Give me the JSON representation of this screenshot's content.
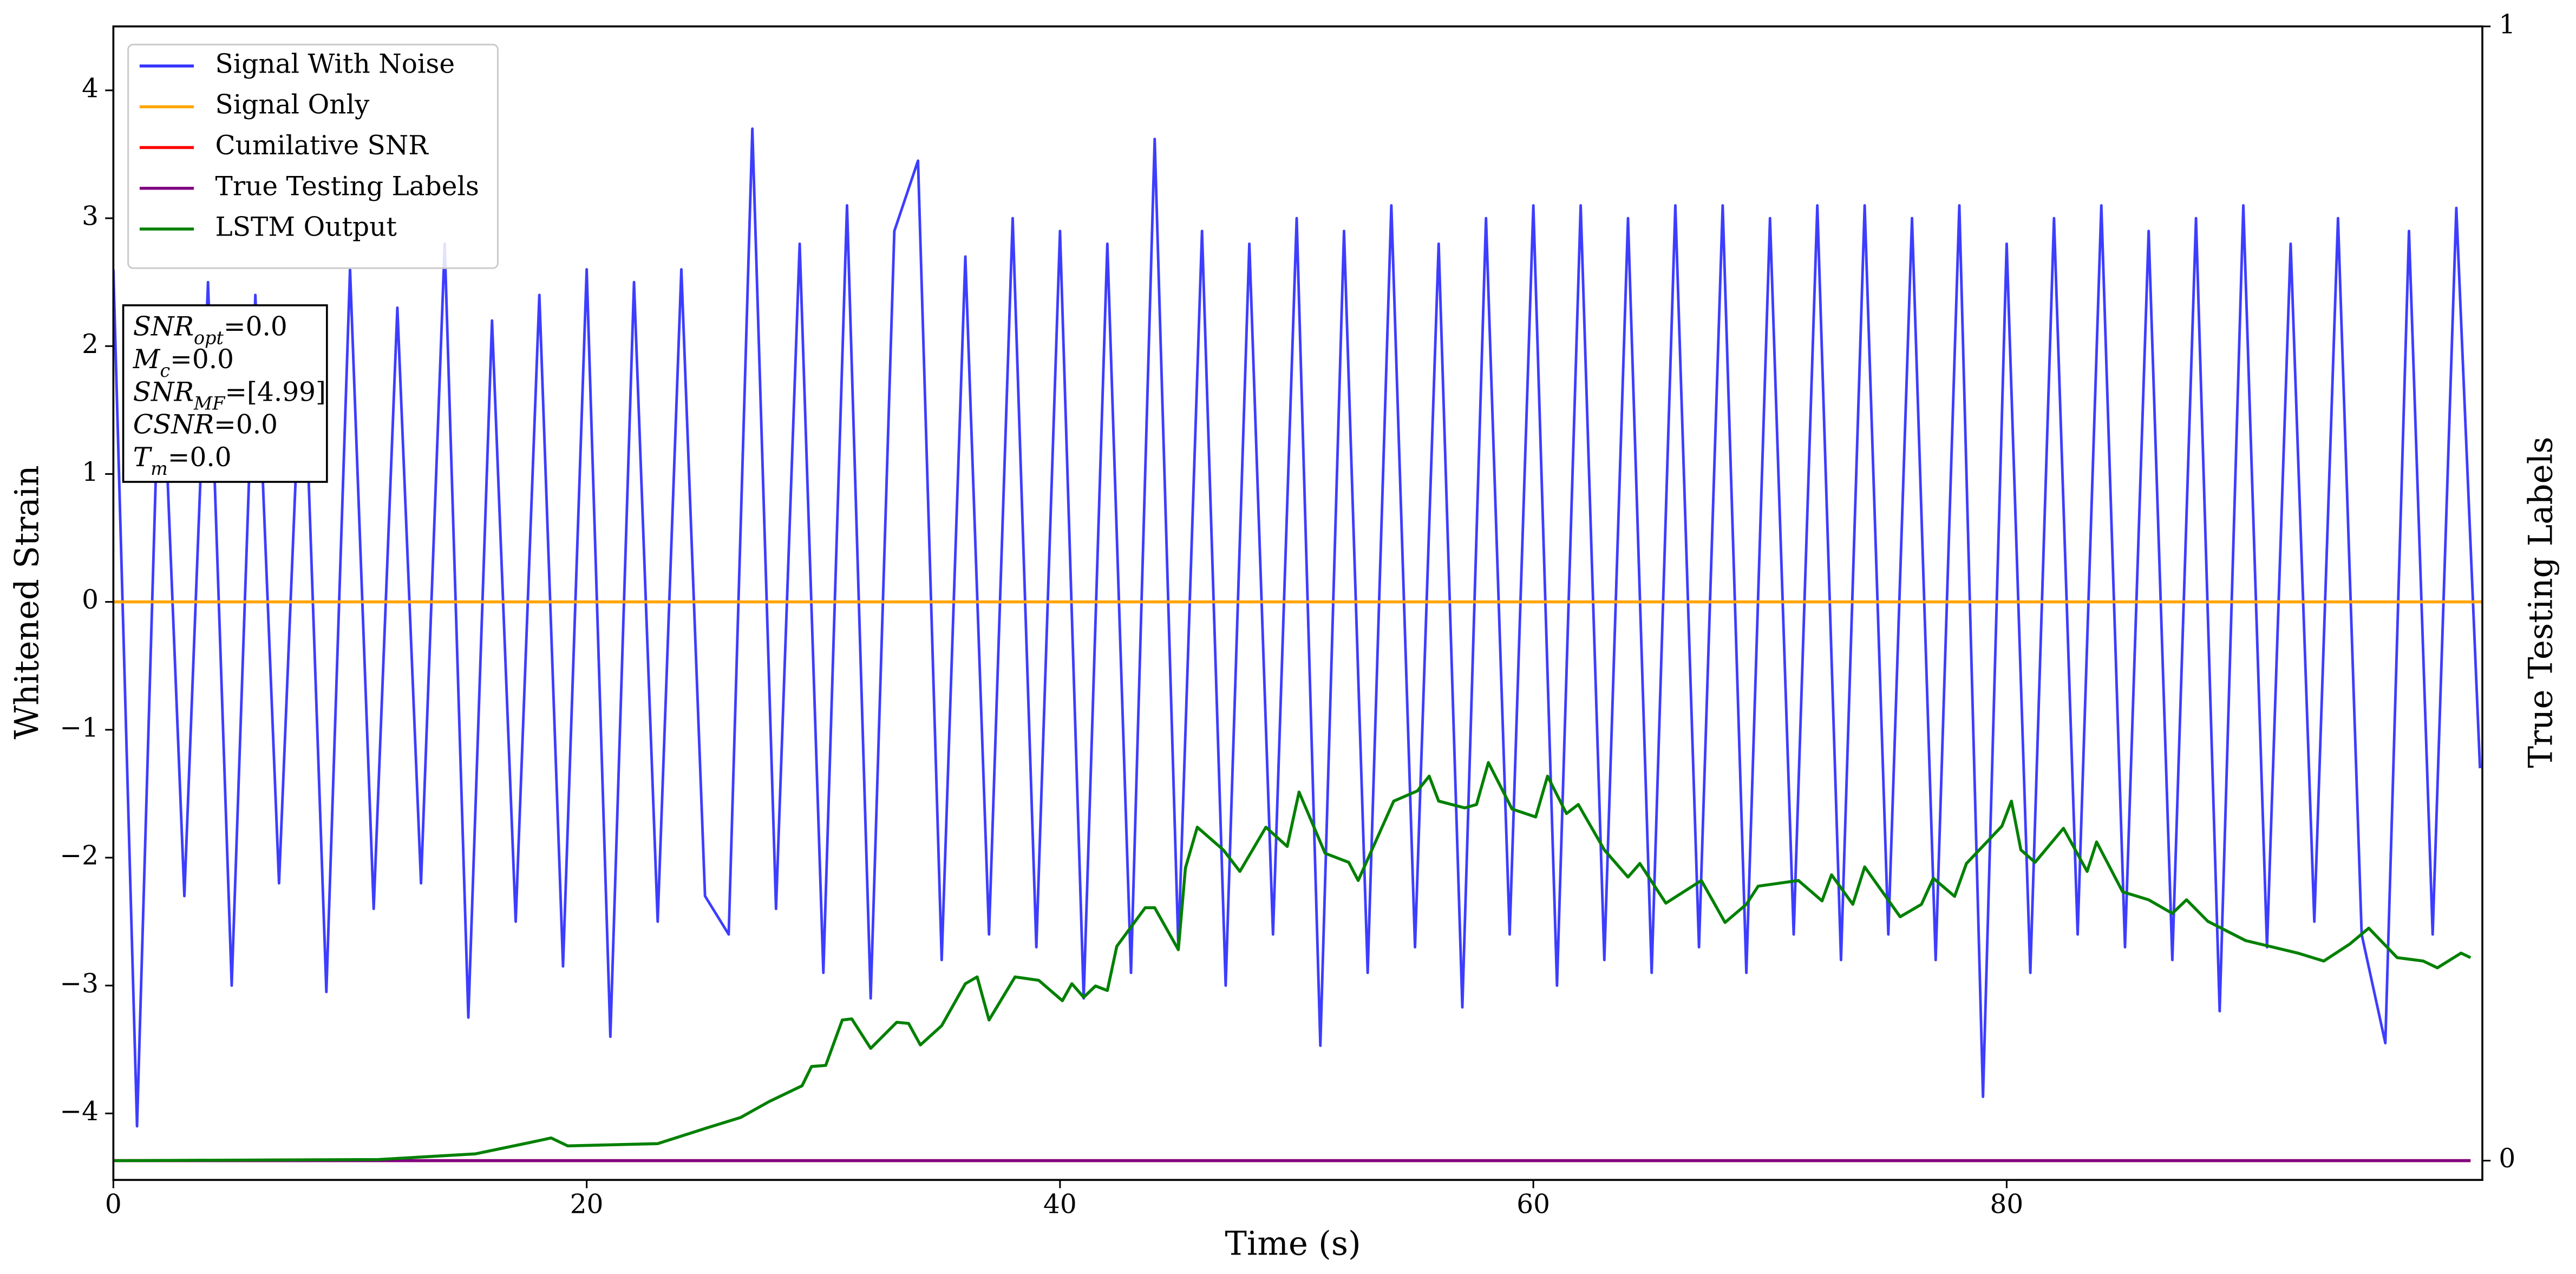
{
  "chart_data": {
    "type": "line",
    "xlabel": "Time (s)",
    "ylabel": "Whitened Strain",
    "y2label": "True Testing Labels",
    "xlim": [
      0,
      100.1
    ],
    "ylim": [
      -4.52,
      4.5
    ],
    "y2lim": [
      -0.017,
      1.0
    ],
    "xticks": [
      0,
      20,
      40,
      60,
      80
    ],
    "yticks": [
      {
        "value": -4,
        "label": "−4"
      },
      {
        "value": -3,
        "label": "−3"
      },
      {
        "value": -2,
        "label": "−2"
      },
      {
        "value": -1,
        "label": "−1"
      },
      0,
      1,
      2,
      3,
      4
    ],
    "y2ticks": [
      0,
      1
    ],
    "legend": "upper left",
    "annotation": [
      {
        "main": "SNR",
        "sub": "opt",
        "rest": "=0.0"
      },
      {
        "main": "M",
        "sub": "c",
        "rest": "=0.0"
      },
      {
        "main": "SNR",
        "sub": "MF",
        "rest": "=[4.99]"
      },
      {
        "main": "CSNR",
        "sub": null,
        "rest": "=0.0"
      },
      {
        "main": "T",
        "sub": "m",
        "rest": "=0.0"
      }
    ],
    "series": [
      {
        "name": "Signal With Noise",
        "color": "#3333ff",
        "axis": "y",
        "x": [
          0,
          1,
          2,
          3,
          4,
          5,
          6,
          7,
          8,
          9,
          10,
          11,
          12,
          13,
          14,
          15,
          16,
          17,
          18,
          19,
          20,
          21,
          22,
          23,
          24,
          25,
          26,
          27,
          28,
          29,
          30,
          31,
          32,
          33,
          34,
          35,
          36,
          37,
          38,
          39,
          40,
          41,
          42,
          43,
          44,
          45,
          46,
          47,
          48,
          49,
          50,
          51,
          52,
          53,
          54,
          55,
          56,
          57,
          58,
          59,
          60,
          61,
          62,
          63,
          64,
          65,
          66,
          67,
          68,
          69,
          70,
          71,
          72,
          73,
          74,
          75,
          76,
          77,
          78,
          79,
          80,
          81,
          82,
          83,
          84,
          85,
          86,
          87,
          88,
          89,
          90,
          91,
          92,
          93,
          94,
          95,
          96,
          97,
          98,
          99,
          100
        ],
        "values": [
          2.6,
          -4.1,
          2.3,
          -2.3,
          2.5,
          -3.0,
          2.4,
          -2.2,
          2.3,
          -3.05,
          2.6,
          -2.4,
          2.3,
          -2.2,
          2.8,
          -3.25,
          2.2,
          -2.5,
          2.4,
          -2.85,
          2.6,
          -3.4,
          2.5,
          -2.5,
          2.6,
          -2.3,
          -2.6,
          3.7,
          -2.4,
          2.8,
          -2.9,
          3.1,
          -3.1,
          2.9,
          3.45,
          -2.8,
          2.7,
          -2.6,
          3.0,
          -2.7,
          2.9,
          -3.1,
          2.8,
          -2.9,
          3.62,
          -2.7,
          2.9,
          -3.0,
          2.8,
          -2.6,
          3.0,
          -3.47,
          2.9,
          -2.9,
          3.1,
          -2.7,
          2.8,
          -3.17,
          3.0,
          -2.6,
          3.1,
          -3.0,
          3.1,
          -2.8,
          3.0,
          -2.9,
          3.1,
          -2.7,
          3.1,
          -2.9,
          3.0,
          -2.6,
          3.1,
          -2.8,
          3.1,
          -2.6,
          3.0,
          -2.8,
          3.1,
          -3.87,
          2.8,
          -2.9,
          3.0,
          -2.6,
          3.1,
          -2.7,
          2.9,
          -2.8,
          3.0,
          -3.2,
          3.1,
          -2.7,
          2.8,
          -2.5,
          3.0,
          -2.6,
          -3.45,
          2.9,
          -2.6,
          3.08,
          -1.3
        ]
      },
      {
        "name": "Signal Only",
        "color": "#ffa500",
        "axis": "y",
        "x": [
          0,
          100.1
        ],
        "values": [
          0,
          0
        ]
      },
      {
        "name": "Cumilative SNR",
        "color": "#ff0000",
        "axis": "y2",
        "x": [
          0,
          99.6
        ],
        "values": [
          0,
          0
        ]
      },
      {
        "name": "True Testing Labels",
        "color": "#800080",
        "axis": "y2",
        "x": [
          0,
          99.6
        ],
        "values": [
          0,
          0
        ]
      },
      {
        "name": "LSTM Output",
        "color": "#008000",
        "axis": "y2",
        "x": [
          0,
          11.2,
          15.3,
          17.6,
          18.5,
          19.2,
          23.0,
          25.1,
          26.5,
          27.7,
          29.1,
          29.5,
          30.1,
          30.8,
          31.2,
          32.0,
          33.1,
          33.6,
          34.1,
          35.0,
          36.0,
          36.5,
          37.0,
          38.1,
          39.1,
          40.1,
          40.5,
          41.0,
          41.5,
          42.0,
          42.4,
          43.6,
          44.0,
          45.0,
          45.3,
          45.8,
          46.9,
          47.6,
          48.7,
          49.6,
          50.1,
          51.2,
          52.2,
          52.6,
          54.1,
          55.1,
          55.6,
          56.0,
          57.1,
          57.6,
          58.1,
          59.1,
          60.1,
          60.6,
          61.4,
          61.9,
          63.0,
          64.0,
          64.5,
          65.6,
          67.1,
          68.1,
          69.0,
          69.5,
          71.2,
          72.2,
          72.6,
          73.5,
          74.0,
          75.5,
          76.4,
          76.9,
          77.8,
          78.3,
          79.8,
          80.2,
          80.6,
          81.2,
          82.4,
          83.4,
          83.8,
          84.9,
          86.0,
          87.0,
          87.6,
          88.5,
          90.1,
          91.1,
          92.3,
          93.4,
          94.5,
          95.3,
          96.5,
          97.6,
          98.2,
          99.2,
          99.6
        ],
        "values": [
          0,
          0.001,
          0.006,
          0.016,
          0.02,
          0.013,
          0.015,
          0.029,
          0.038,
          0.052,
          0.066,
          0.083,
          0.084,
          0.124,
          0.125,
          0.099,
          0.122,
          0.121,
          0.102,
          0.119,
          0.156,
          0.162,
          0.124,
          0.162,
          0.159,
          0.141,
          0.156,
          0.144,
          0.154,
          0.15,
          0.189,
          0.223,
          0.223,
          0.186,
          0.258,
          0.294,
          0.274,
          0.255,
          0.294,
          0.277,
          0.325,
          0.271,
          0.263,
          0.247,
          0.317,
          0.326,
          0.339,
          0.317,
          0.311,
          0.314,
          0.351,
          0.31,
          0.303,
          0.339,
          0.306,
          0.314,
          0.274,
          0.25,
          0.262,
          0.227,
          0.247,
          0.21,
          0.226,
          0.242,
          0.247,
          0.229,
          0.252,
          0.226,
          0.259,
          0.215,
          0.226,
          0.249,
          0.233,
          0.262,
          0.295,
          0.317,
          0.274,
          0.263,
          0.293,
          0.255,
          0.281,
          0.237,
          0.23,
          0.218,
          0.23,
          0.211,
          0.194,
          0.189,
          0.183,
          0.176,
          0.191,
          0.205,
          0.179,
          0.176,
          0.17,
          0.183,
          0.179
        ]
      }
    ]
  }
}
